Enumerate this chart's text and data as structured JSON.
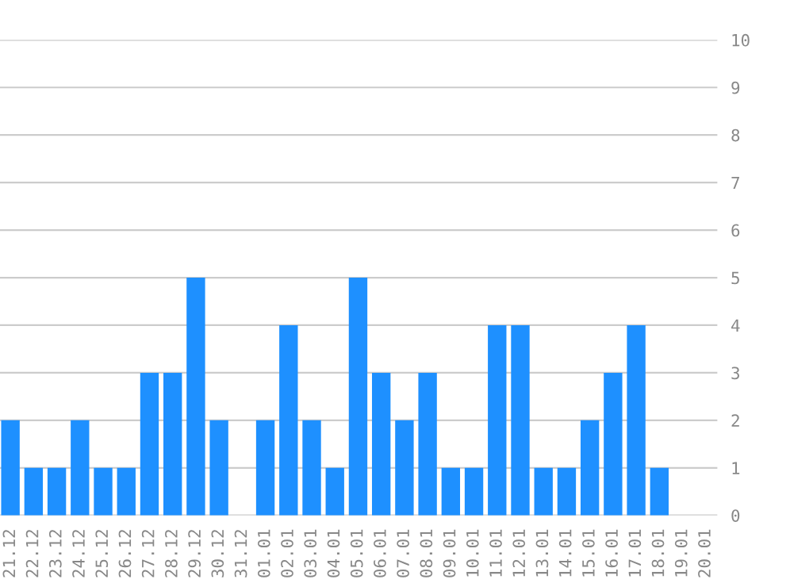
{
  "chart_data": {
    "type": "bar",
    "categories": [
      "21.12",
      "22.12",
      "23.12",
      "24.12",
      "25.12",
      "26.12",
      "27.12",
      "28.12",
      "29.12",
      "30.12",
      "31.12",
      "01.01",
      "02.01",
      "03.01",
      "04.01",
      "05.01",
      "06.01",
      "07.01",
      "08.01",
      "09.01",
      "10.01",
      "11.01",
      "12.01",
      "13.01",
      "14.01",
      "15.01",
      "16.01",
      "17.01",
      "18.01",
      "19.01",
      "20.01"
    ],
    "values": [
      2,
      1,
      1,
      2,
      1,
      1,
      3,
      3,
      5,
      2,
      0,
      2,
      4,
      2,
      1,
      5,
      3,
      2,
      3,
      1,
      1,
      4,
      4,
      1,
      1,
      2,
      3,
      4,
      1,
      0,
      0
    ],
    "color": "#1e90ff",
    "ylim": [
      0,
      10
    ],
    "yticks": [
      0,
      1,
      2,
      3,
      4,
      5,
      6,
      7,
      8,
      9,
      10
    ],
    "grid": "y"
  }
}
